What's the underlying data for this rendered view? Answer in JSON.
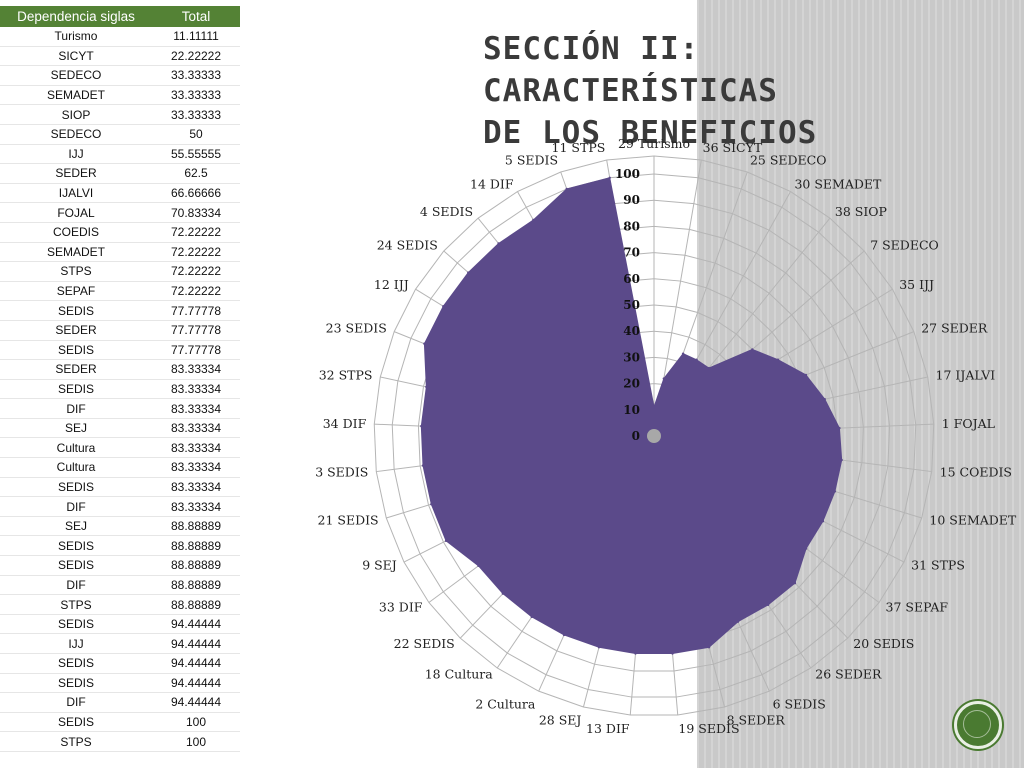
{
  "title_line1": "Sección II: Características",
  "title_line2": "de los beneficios",
  "table": {
    "headers": [
      "Dependencia siglas",
      "Total"
    ],
    "rows": [
      [
        "Turismo",
        "11.11111"
      ],
      [
        "SICYT",
        "22.22222"
      ],
      [
        "SEDECO",
        "33.33333"
      ],
      [
        "SEMADET",
        "33.33333"
      ],
      [
        "SIOP",
        "33.33333"
      ],
      [
        "SEDECO",
        "50"
      ],
      [
        "IJJ",
        "55.55555"
      ],
      [
        "SEDER",
        "62.5"
      ],
      [
        "IJALVI",
        "66.66666"
      ],
      [
        "FOJAL",
        "70.83334"
      ],
      [
        "COEDIS",
        "72.22222"
      ],
      [
        "SEMADET",
        "72.22222"
      ],
      [
        "STPS",
        "72.22222"
      ],
      [
        "SEPAF",
        "72.22222"
      ],
      [
        "SEDIS",
        "77.77778"
      ],
      [
        "SEDER",
        "77.77778"
      ],
      [
        "SEDIS",
        "77.77778"
      ],
      [
        "SEDER",
        "83.33334"
      ],
      [
        "SEDIS",
        "83.33334"
      ],
      [
        "DIF",
        "83.33334"
      ],
      [
        "SEJ",
        "83.33334"
      ],
      [
        "Cultura",
        "83.33334"
      ],
      [
        "Cultura",
        "83.33334"
      ],
      [
        "SEDIS",
        "83.33334"
      ],
      [
        "DIF",
        "83.33334"
      ],
      [
        "SEJ",
        "88.88889"
      ],
      [
        "SEDIS",
        "88.88889"
      ],
      [
        "SEDIS",
        "88.88889"
      ],
      [
        "DIF",
        "88.88889"
      ],
      [
        "STPS",
        "88.88889"
      ],
      [
        "SEDIS",
        "94.44444"
      ],
      [
        "IJJ",
        "94.44444"
      ],
      [
        "SEDIS",
        "94.44444"
      ],
      [
        "SEDIS",
        "94.44444"
      ],
      [
        "DIF",
        "94.44444"
      ],
      [
        "SEDIS",
        "100"
      ],
      [
        "STPS",
        "100"
      ]
    ]
  },
  "chart_data": {
    "type": "radar",
    "fill_color": "#5b4a8a",
    "rlim": [
      0,
      100
    ],
    "r_ticks": [
      "0",
      "10",
      "20",
      "30",
      "40",
      "50",
      "60",
      "70",
      "80",
      "90",
      "100"
    ],
    "categories": [
      "29 Turismo",
      "36 SICYT",
      "25 SEDECO",
      "30 SEMADET",
      "38 SIOP",
      "7 SEDECO",
      "35 IJJ",
      "27 SEDER",
      "17 IJALVI",
      "1 FOJAL",
      "15 COEDIS",
      "10 SEMADET",
      "31 STPS",
      "37 SEPAF",
      "20 SEDIS",
      "26 SEDER",
      "6 SEDIS",
      "8 SEDER",
      "19 SEDIS",
      "13 DIF",
      "28 SEJ",
      "2 Cultura",
      "18 Cultura",
      "22 SEDIS",
      "33 DIF",
      "9 SEJ",
      "21 SEDIS",
      "3 SEDIS",
      "34 DIF",
      "32 STPS",
      "23 SEDIS",
      "12 IJJ",
      "24 SEDIS",
      "4 SEDIS",
      "14 DIF",
      "5 SEDIS",
      "11 STPS"
    ],
    "values": [
      11.11111,
      22.22222,
      33.33333,
      33.33333,
      33.33333,
      50,
      55.55555,
      62.5,
      66.66666,
      70.83334,
      72.22222,
      72.22222,
      72.22222,
      72.22222,
      77.77778,
      77.77778,
      77.77778,
      83.33334,
      83.33334,
      83.33334,
      83.33334,
      83.33334,
      83.33334,
      83.33334,
      83.33334,
      88.88889,
      88.88889,
      88.88889,
      88.88889,
      88.88889,
      94.44444,
      94.44444,
      94.44444,
      94.44444,
      94.44444,
      100,
      100
    ]
  }
}
